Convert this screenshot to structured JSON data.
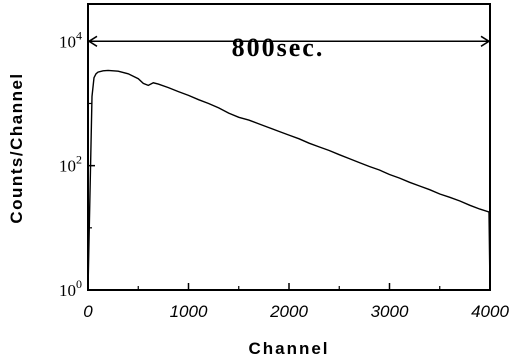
{
  "chart_data": {
    "type": "line",
    "title": "",
    "xlabel": "Channel",
    "ylabel": "Counts/Channel",
    "xlim": [
      0,
      4000
    ],
    "ylim_log10": [
      0,
      4.6
    ],
    "y_scale": "log",
    "grid": false,
    "x_ticks": [
      "0",
      "1000",
      "2000",
      "3000",
      "4000"
    ],
    "y_ticks": [
      {
        "base": "10",
        "exp": "0",
        "value": 1
      },
      {
        "base": "10",
        "exp": "2",
        "value": 100
      },
      {
        "base": "10",
        "exp": "4",
        "value": 10000
      }
    ],
    "annotation": {
      "text": "800sec.",
      "arrow_from_channel": 0,
      "arrow_to_channel": 4000,
      "arrow_at_counts": 10000
    },
    "series": [
      {
        "x": [
          40,
          60,
          80,
          100,
          150,
          200,
          300,
          400,
          500,
          550,
          600,
          650,
          700,
          800,
          900,
          1000,
          1100,
          1200,
          1300,
          1400,
          1500,
          1600,
          1700,
          1800,
          1900,
          2000,
          2100,
          2200,
          2300,
          2400,
          2500,
          2600,
          2700,
          2800,
          2900,
          3000,
          3100,
          3200,
          3300,
          3400,
          3500,
          3600,
          3700,
          3800,
          3900,
          3990
        ],
        "y": [
          1300,
          2600,
          3000,
          3200,
          3350,
          3400,
          3300,
          3000,
          2500,
          2100,
          1950,
          2150,
          2050,
          1800,
          1550,
          1350,
          1150,
          1000,
          850,
          700,
          600,
          540,
          470,
          410,
          355,
          310,
          270,
          230,
          200,
          175,
          150,
          130,
          112,
          97,
          85,
          72,
          63,
          54,
          47,
          41,
          35,
          31,
          27,
          23,
          20,
          18
        ]
      }
    ]
  }
}
